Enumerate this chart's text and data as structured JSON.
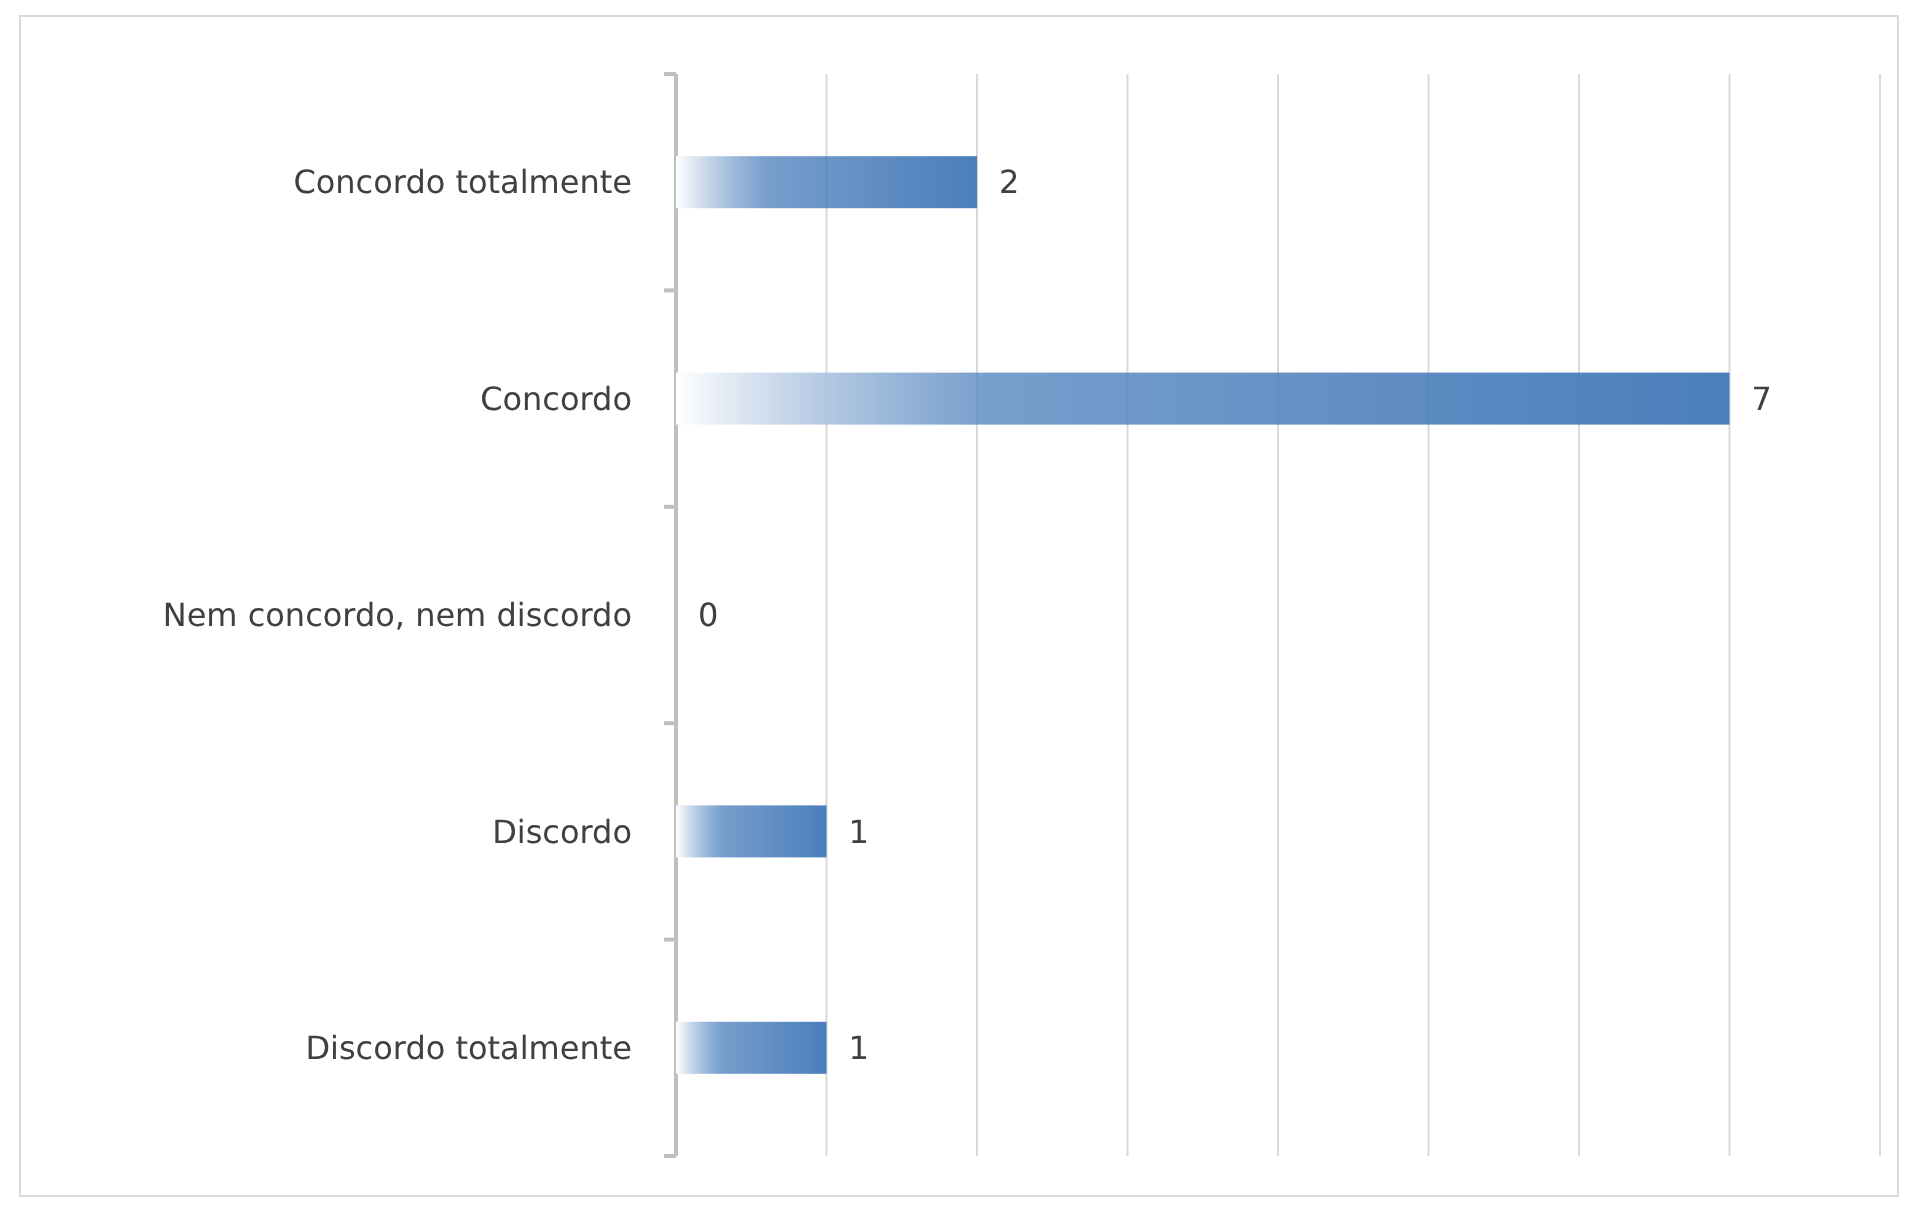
{
  "chart_data": {
    "type": "bar",
    "orientation": "horizontal",
    "categories": [
      "Concordo totalmente",
      "Concordo",
      "Nem concordo, nem discordo",
      "Discordo",
      "Discordo totalmente"
    ],
    "values": [
      2,
      7,
      0,
      1,
      1
    ],
    "color": "#4a7ebb",
    "xlim": [
      0,
      8
    ],
    "xticks": [
      {
        "value": 0,
        "label": null
      },
      {
        "value": 1,
        "label": null
      },
      {
        "value": 2,
        "label": null
      },
      {
        "value": 3,
        "label": null
      },
      {
        "value": 4,
        "label": null
      },
      {
        "value": 5,
        "label": null
      },
      {
        "value": 6,
        "label": null
      },
      {
        "value": 7,
        "label": null
      },
      {
        "value": 8,
        "label": null
      }
    ],
    "grid": "x",
    "tick_labels": "y",
    "data_labels": true
  }
}
